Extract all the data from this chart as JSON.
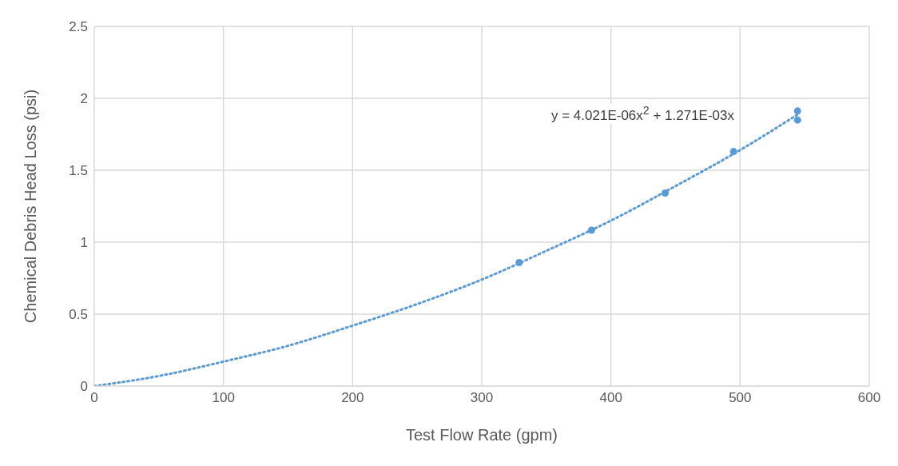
{
  "chart_data": {
    "type": "scatter",
    "xlabel": "Test Flow Rate (gpm)",
    "ylabel": "Chemical Debris Head Loss (psi)",
    "x": [
      329,
      385,
      442,
      495,
      544.5,
      544.5
    ],
    "series": [
      {
        "color": "#5b9bd5",
        "marker": "circle",
        "values": [
          0.858,
          1.083,
          1.342,
          1.63,
          1.912,
          1.849
        ]
      },
      {
        "type": "line",
        "color": "#5b9bd5",
        "marker": "none",
        "line_style": "dotted",
        "x": [
          0,
          50,
          100,
          150,
          200,
          250,
          300,
          350,
          400,
          450,
          500,
          545
        ],
        "values": [
          0,
          0.07,
          0.17,
          0.28,
          0.42,
          0.57,
          0.74,
          0.94,
          1.15,
          1.39,
          1.64,
          1.89
        ]
      }
    ],
    "annotations": [
      "y = 4.021E-06x$^{2}$ + 1.271E-03x"
    ],
    "xlim": [
      0,
      600
    ],
    "xticks": [
      0,
      100,
      200,
      300,
      400,
      500,
      600
    ],
    "ylim": [
      0,
      2.5
    ],
    "yticks": [
      0,
      0.5,
      1,
      1.5,
      2,
      2.5
    ],
    "grid": true
  }
}
